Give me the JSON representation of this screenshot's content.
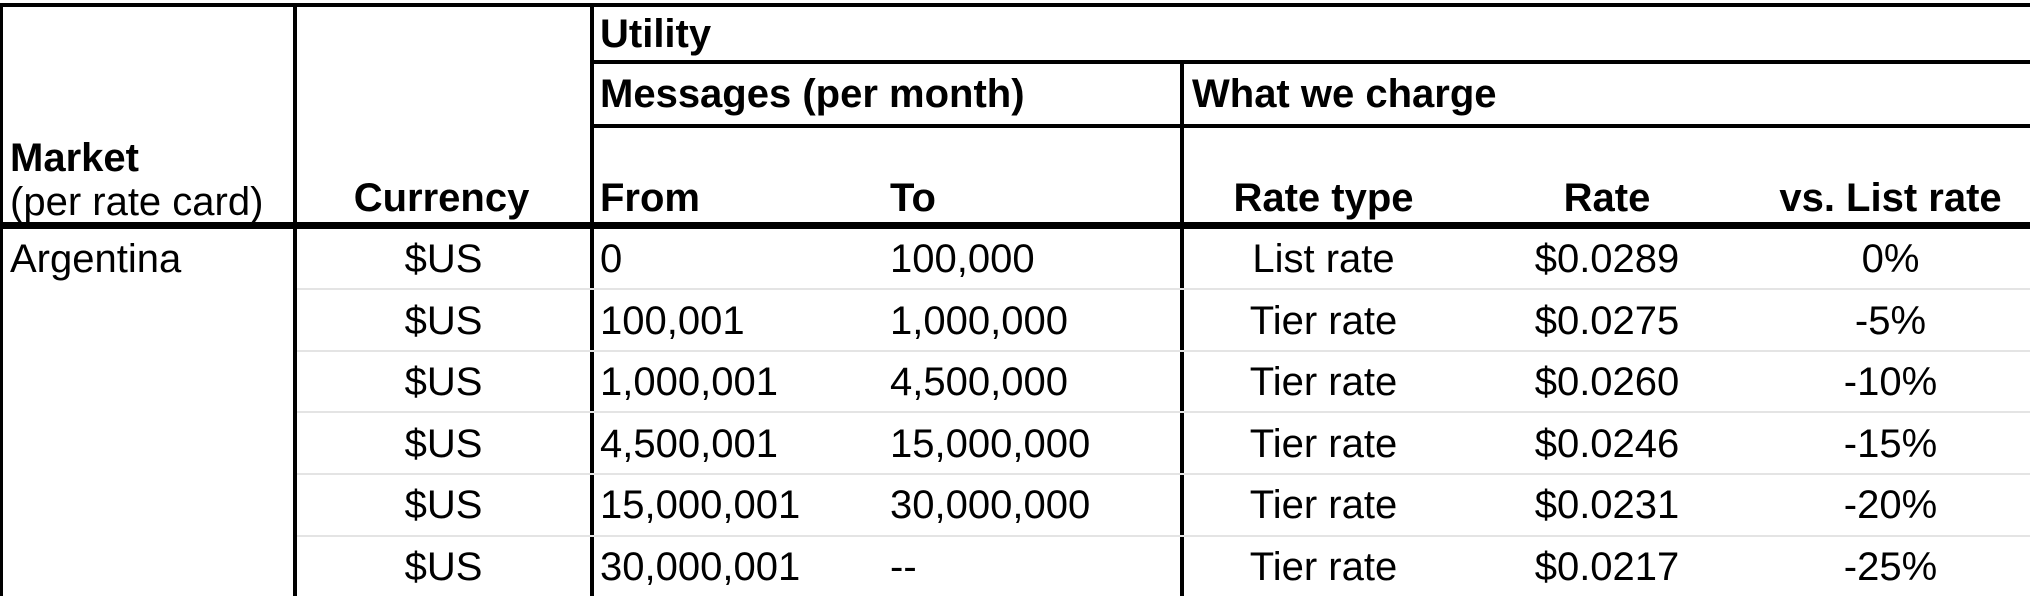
{
  "table": {
    "section_headers": {
      "utility": "Utility",
      "messages": "Messages (per month)",
      "what_we_charge": "What we charge"
    },
    "column_headers": {
      "market_line1": "Market",
      "market_line2": "(per rate card)",
      "currency": "Currency",
      "from": "From",
      "to": "To",
      "rate_type": "Rate type",
      "rate": "Rate",
      "vs_list_rate": "vs. List rate"
    },
    "rows": [
      {
        "market": "Argentina",
        "currency": "$US",
        "from": "0",
        "to": "100,000",
        "rate_type": "List rate",
        "rate": "$0.0289",
        "vs_list_rate": "0%"
      },
      {
        "market": "",
        "currency": "$US",
        "from": "100,001",
        "to": "1,000,000",
        "rate_type": "Tier rate",
        "rate": "$0.0275",
        "vs_list_rate": "-5%"
      },
      {
        "market": "",
        "currency": "$US",
        "from": "1,000,001",
        "to": "4,500,000",
        "rate_type": "Tier rate",
        "rate": "$0.0260",
        "vs_list_rate": "-10%"
      },
      {
        "market": "",
        "currency": "$US",
        "from": "4,500,001",
        "to": "15,000,000",
        "rate_type": "Tier rate",
        "rate": "$0.0246",
        "vs_list_rate": "-15%"
      },
      {
        "market": "",
        "currency": "$US",
        "from": "15,000,001",
        "to": "30,000,000",
        "rate_type": "Tier rate",
        "rate": "$0.0231",
        "vs_list_rate": "-20%"
      },
      {
        "market": "",
        "currency": "$US",
        "from": "30,000,001",
        "to": "--",
        "rate_type": "Tier rate",
        "rate": "$0.0217",
        "vs_list_rate": "-25%"
      }
    ],
    "colors": {
      "border_black": "#000000",
      "row_separator_gray": "#e4e4e4",
      "background": "#ffffff",
      "text": "#000000"
    }
  }
}
